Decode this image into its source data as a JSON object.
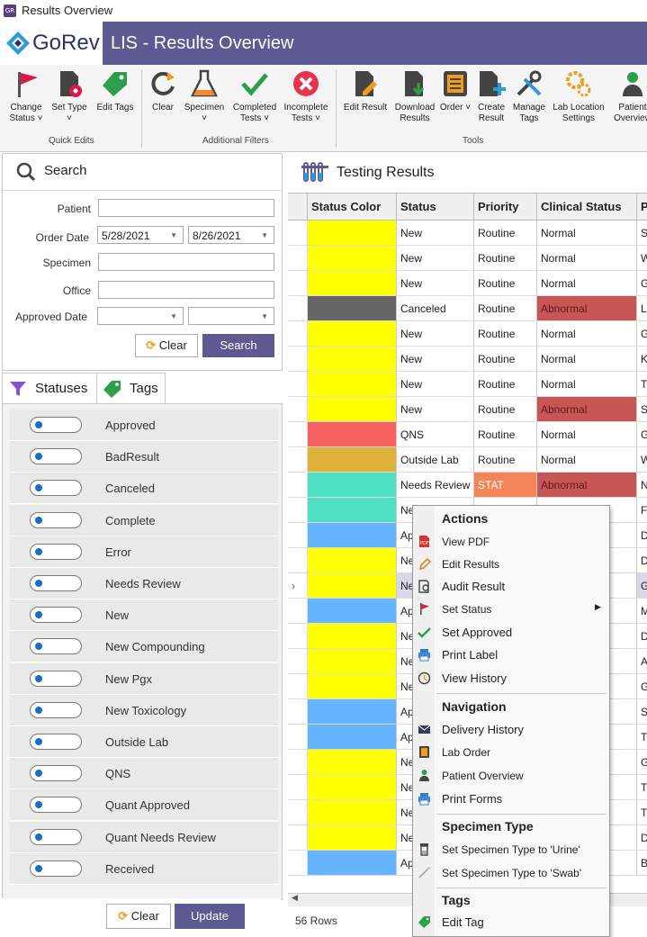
{
  "window": {
    "title": "Results Overview"
  },
  "brand": {
    "logo_text": "GoRev",
    "app_title": "LIS - Results Overview"
  },
  "ribbon": {
    "groups": {
      "quick_edits": "Quick Edits",
      "additional_filters": "Additional Filters",
      "tools": "Tools"
    },
    "change_status": "Change Status ˅",
    "set_type": "Set Type ˅",
    "edit_tags": "Edit Tags",
    "clear": "Clear",
    "specimen": "Specimen ˅",
    "completed_tests": "Completed Tests ˅",
    "incomplete_tests": "Incomplete Tests ˅",
    "edit_result": "Edit Result",
    "download_results": "Download Results",
    "order": "Order ˅",
    "create_result": "Create Result",
    "manage_tags": "Manage Tags",
    "lab_location_settings": "Lab Location Settings",
    "patient_overview": "Patient Overview"
  },
  "search": {
    "title": "Search",
    "patient_label": "Patient",
    "patient_value": "",
    "order_date_label": "Order Date",
    "order_date_from": "5/28/2021",
    "order_date_to": "8/26/2021",
    "specimen_label": "Specimen",
    "office_label": "Office",
    "approved_date_label": "Approved Date",
    "clear_label": "Clear",
    "search_label": "Search"
  },
  "tabs": {
    "statuses": "Statuses",
    "tags": "Tags"
  },
  "statuses": [
    "Approved",
    "BadResult",
    "Canceled",
    "Complete",
    "Error",
    "Needs Review",
    "New",
    "New Compounding",
    "New Pgx",
    "New Toxicology",
    "Outside Lab",
    "QNS",
    "Quant Approved",
    "Quant Needs Review",
    "Received"
  ],
  "status_footer": {
    "clear_label": "Clear",
    "update_label": "Update"
  },
  "results": {
    "title": "Testing Results",
    "columns": [
      "Status Color",
      "Status",
      "Priority",
      "Clinical Status",
      "P"
    ],
    "row_count": "56 Rows",
    "rows": [
      {
        "color": "#ffff00",
        "status": "New",
        "priority": "Routine",
        "clinical": "Normal",
        "p": "S"
      },
      {
        "color": "#ffff00",
        "status": "New",
        "priority": "Routine",
        "clinical": "Normal",
        "p": "W"
      },
      {
        "color": "#ffff00",
        "status": "New",
        "priority": "Routine",
        "clinical": "Normal",
        "p": "G"
      },
      {
        "color": "#666666",
        "status": "Canceled",
        "priority": "Routine",
        "clinical": "Abnormal",
        "p": "Li"
      },
      {
        "color": "#ffff00",
        "status": "New",
        "priority": "Routine",
        "clinical": "Normal",
        "p": "G"
      },
      {
        "color": "#ffff00",
        "status": "New",
        "priority": "Routine",
        "clinical": "Normal",
        "p": "K"
      },
      {
        "color": "#ffff00",
        "status": "New",
        "priority": "Routine",
        "clinical": "Normal",
        "p": "T"
      },
      {
        "color": "#ffff00",
        "status": "New",
        "priority": "Routine",
        "clinical": "Abnormal",
        "p": "S"
      },
      {
        "color": "#f86161",
        "status": "QNS",
        "priority": "Routine",
        "clinical": "Normal",
        "p": "G"
      },
      {
        "color": "#dfb239",
        "status": "Outside Lab",
        "priority": "Routine",
        "clinical": "Normal",
        "p": "W"
      },
      {
        "color": "#4ee0c0",
        "status": "Needs Review",
        "priority": "STAT",
        "clinical": "Abnormal",
        "p": "N"
      },
      {
        "color": "#4ee0c0",
        "status": "Ne",
        "priority": "",
        "clinical": "",
        "p": "Fl"
      },
      {
        "color": "#66b3ff",
        "status": "Ap",
        "priority": "",
        "clinical": "",
        "p": "D"
      },
      {
        "color": "#ffff00",
        "status": "Ne",
        "priority": "",
        "clinical": "",
        "p": "D"
      },
      {
        "color": "#ffff00",
        "status": "Ne",
        "priority": "",
        "clinical": "",
        "p": "G"
      },
      {
        "color": "#66b3ff",
        "status": "Ap",
        "priority": "",
        "clinical": "",
        "p": "M"
      },
      {
        "color": "#ffff00",
        "status": "Ne",
        "priority": "",
        "clinical": "",
        "p": "D"
      },
      {
        "color": "#ffff00",
        "status": "Ne",
        "priority": "",
        "clinical": "",
        "p": "A"
      },
      {
        "color": "#ffff00",
        "status": "Ne",
        "priority": "",
        "clinical": "",
        "p": "G"
      },
      {
        "color": "#66b3ff",
        "status": "Ap",
        "priority": "",
        "clinical": "",
        "p": "S"
      },
      {
        "color": "#66b3ff",
        "status": "Ap",
        "priority": "",
        "clinical": "",
        "p": "T"
      },
      {
        "color": "#ffff00",
        "status": "Ne",
        "priority": "",
        "clinical": "",
        "p": "G"
      },
      {
        "color": "#ffff00",
        "status": "Ne",
        "priority": "",
        "clinical": "",
        "p": "T"
      },
      {
        "color": "#ffff00",
        "status": "Ne",
        "priority": "",
        "clinical": "",
        "p": "T"
      },
      {
        "color": "#ffff00",
        "status": "Ne",
        "priority": "",
        "clinical": "",
        "p": "D"
      },
      {
        "color": "#66b3ff",
        "status": "Ap",
        "priority": "",
        "clinical": "",
        "p": "B"
      }
    ],
    "abnormal_color": "#c95656",
    "stat_color": "#f58559"
  },
  "context_menu": {
    "actions_header": "Actions",
    "view_pdf": "View PDF",
    "edit_results": "Edit Results",
    "audit_result": "Audit Result",
    "set_status": "Set Status",
    "set_approved": "Set Approved",
    "print_label": "Print Label",
    "view_history": "View History",
    "navigation_header": "Navigation",
    "delivery_history": "Delivery History",
    "lab_order": "Lab Order",
    "patient_overview": "Patient Overview",
    "print_forms": "Print Forms",
    "specimen_type_header": "Specimen Type",
    "set_specimen_urine": "Set Specimen Type to 'Urine'",
    "set_specimen_swab": "Set Specimen Type to 'Swab'",
    "tags_header": "Tags",
    "edit_tag": "Edit Tag"
  },
  "colors": {
    "brand": "#5d5a93",
    "accent_blue": "#1b6ec2"
  }
}
